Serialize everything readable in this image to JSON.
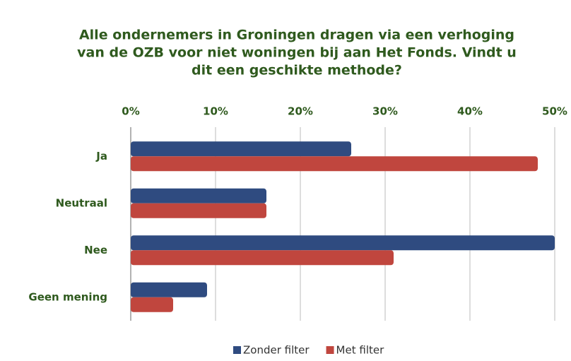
{
  "chart_data": {
    "type": "hbar",
    "title": [
      "Alle ondernemers in Groningen dragen via een verhoging",
      "van de OZB voor niet woningen bij aan Het Fonds. Vindt u",
      "dit een geschikte methode?"
    ],
    "categories": [
      "Ja",
      "Neutraal",
      "Nee",
      "Geen mening"
    ],
    "series": [
      {
        "name": "Zonder filter",
        "color": "#2f4b80",
        "values": [
          26,
          16,
          50,
          9
        ]
      },
      {
        "name": "Met filter",
        "color": "#c0463e",
        "values": [
          48,
          16,
          31,
          5
        ]
      }
    ],
    "xlim": [
      0,
      50
    ],
    "xticks": [
      {
        "value": 0,
        "label": "0%"
      },
      {
        "value": 10,
        "label": "10%"
      },
      {
        "value": 20,
        "label": "20%"
      },
      {
        "value": 30,
        "label": "30%"
      },
      {
        "value": 40,
        "label": "40%"
      },
      {
        "value": 50,
        "label": "50%"
      }
    ],
    "grid": true,
    "legend": "bottom"
  }
}
